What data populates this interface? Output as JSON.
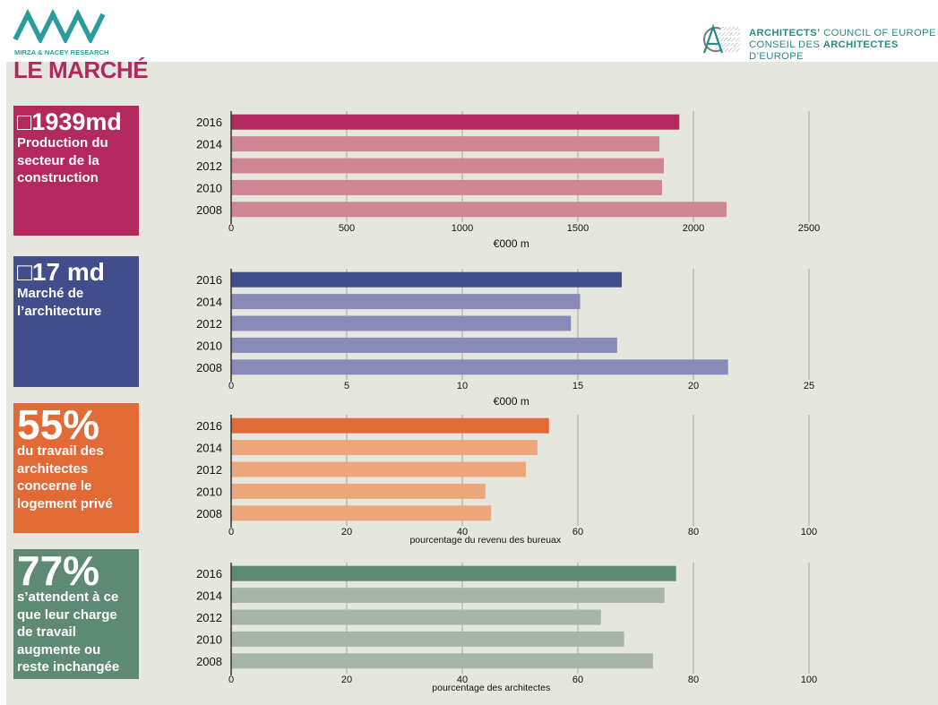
{
  "header": {
    "left_logo_text": "MIRZA & NACEY RESEARCH",
    "page_title": "LE MARCHÉ",
    "right_logo_line1_bold": "ARCHITECTS’",
    "right_logo_line1_rest": " COUNCIL OF EUROPE",
    "right_logo_line2_pre": "CONSEIL DES ",
    "right_logo_line2_bold": "ARCHITECTES",
    "right_logo_line2_post": " D’EUROPE",
    "brand_teal": "#2a9c9b"
  },
  "cards": [
    {
      "headline": "□1939md",
      "description": "Production du secteur de la construction",
      "color": "#b3285d"
    },
    {
      "headline": "□17 md",
      "description": "Marché de l’architecture",
      "color": "#414e8b"
    },
    {
      "headline": "55%",
      "description": "du travail des architectes concerne le logement privé",
      "color": "#e26a37"
    },
    {
      "headline": "77%",
      "description": "s’attendent à ce que leur charge de travail augmente ou reste inchangée",
      "color": "#5e8a73"
    }
  ],
  "chart_data": [
    {
      "type": "bar",
      "orientation": "horizontal",
      "title": "Production du secteur de la construction",
      "categories": [
        "2016",
        "2014",
        "2012",
        "2010",
        "2008"
      ],
      "values": [
        1939,
        1853,
        1872,
        1864,
        2143
      ],
      "xlabel": "€000 m",
      "xlim": [
        0,
        2500
      ],
      "xticks": [
        "0",
        "500",
        "1000",
        "1500",
        "2000",
        "2500"
      ],
      "tick_values": [
        0,
        500,
        1000,
        1500,
        2000,
        2500
      ],
      "grid": true,
      "highlight_color": "#b3285d",
      "bar_color": "#d08594"
    },
    {
      "type": "bar",
      "orientation": "horizontal",
      "title": "Marché de l’architecture",
      "categories": [
        "2016",
        "2014",
        "2012",
        "2010",
        "2008"
      ],
      "values": [
        16.9,
        15.1,
        14.7,
        16.7,
        21.5
      ],
      "xlabel": "€000 m",
      "xlim": [
        0,
        25
      ],
      "xticks": [
        "0",
        "5",
        "10",
        "15",
        "20",
        "25"
      ],
      "tick_values": [
        0,
        5,
        10,
        15,
        20,
        25
      ],
      "grid": true,
      "highlight_color": "#414e8b",
      "bar_color": "#8a8ab8"
    },
    {
      "type": "bar",
      "orientation": "horizontal",
      "title": "Logement privé",
      "categories": [
        "2016",
        "2014",
        "2012",
        "2010",
        "2008"
      ],
      "values": [
        55,
        53,
        51,
        44,
        45
      ],
      "xlabel": "pourcentage du revenu des bureuax",
      "xlim": [
        0,
        100
      ],
      "xticks": [
        "0",
        "20",
        "40",
        "60",
        "80",
        "100"
      ],
      "tick_values": [
        0,
        20,
        40,
        60,
        80,
        100
      ],
      "grid": true,
      "highlight_color": "#e26a37",
      "bar_color": "#eea77c"
    },
    {
      "type": "bar",
      "orientation": "horizontal",
      "title": "Charge de travail",
      "categories": [
        "2016",
        "2014",
        "2012",
        "2010",
        "2008"
      ],
      "values": [
        77,
        75,
        64,
        68,
        73
      ],
      "xlabel": "pourcentage des architectes",
      "xlim": [
        0,
        100
      ],
      "xticks": [
        "0",
        "20",
        "40",
        "60",
        "80",
        "100"
      ],
      "tick_values": [
        0,
        20,
        40,
        60,
        80,
        100
      ],
      "grid": true,
      "highlight_color": "#5e8a73",
      "bar_color": "#a6b5a7"
    }
  ]
}
